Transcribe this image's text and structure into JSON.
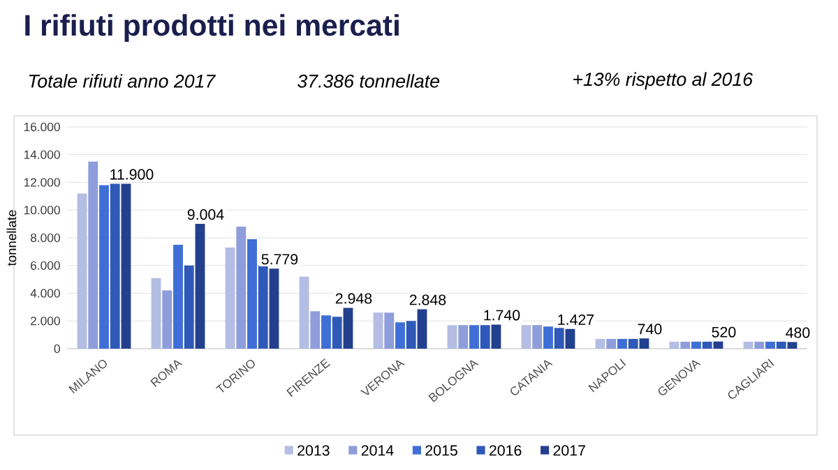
{
  "chart_data": {
    "type": "bar",
    "title": "I rifiuti prodotti nei mercati",
    "annotations": [
      "Totale rifiuti anno 2017",
      "37.386 tonnellate",
      "+13% rispetto al 2016"
    ],
    "ylabel": "tonnellate",
    "categories": [
      "MILANO",
      "ROMA",
      "TORINO",
      "FIRENZE",
      "VERONA",
      "BOLOGNA",
      "CATANIA",
      "NAPOLI",
      "GENOVA",
      "CAGLIARI"
    ],
    "series": [
      {
        "name": "2013",
        "color": "#b4bde3",
        "values": [
          11200,
          5100,
          7300,
          5200,
          2600,
          1700,
          1700,
          700,
          500,
          500
        ]
      },
      {
        "name": "2014",
        "color": "#8e9ddb",
        "values": [
          13500,
          4200,
          8800,
          2700,
          2600,
          1700,
          1700,
          700,
          500,
          500
        ]
      },
      {
        "name": "2015",
        "color": "#3f6fd6",
        "values": [
          11800,
          7500,
          7900,
          2400,
          1900,
          1700,
          1600,
          700,
          500,
          500
        ]
      },
      {
        "name": "2016",
        "color": "#2f59b8",
        "values": [
          11900,
          6000,
          6000,
          2300,
          2000,
          1700,
          1500,
          700,
          500,
          500
        ]
      },
      {
        "name": "2017",
        "color": "#23408e",
        "values": [
          11900,
          9004,
          5779,
          2948,
          2848,
          1740,
          1427,
          740,
          520,
          480
        ],
        "value_labels": [
          "11.900",
          "9.004",
          "5.779",
          "2.948",
          "2.848",
          "1.740",
          "1.427",
          "740",
          "520",
          "480"
        ]
      }
    ],
    "ylim": [
      0,
      16000
    ],
    "yticks": [
      {
        "value": 0,
        "label": "0"
      },
      {
        "value": 2000,
        "label": "2.000"
      },
      {
        "value": 4000,
        "label": "4.000"
      },
      {
        "value": 6000,
        "label": "6.000"
      },
      {
        "value": 8000,
        "label": "8.000"
      },
      {
        "value": 10000,
        "label": "10.000"
      },
      {
        "value": 12000,
        "label": "12.000"
      },
      {
        "value": 14000,
        "label": "14.000"
      },
      {
        "value": 16000,
        "label": "16.000"
      }
    ],
    "grid": "y",
    "legend": "bottom"
  }
}
